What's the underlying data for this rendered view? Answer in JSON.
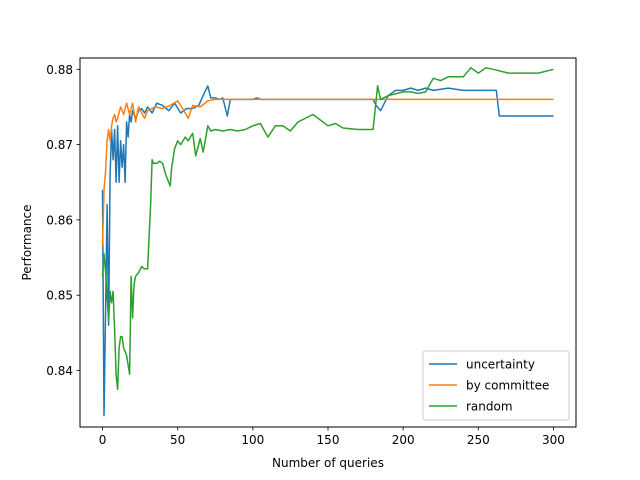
{
  "chart_data": {
    "type": "line",
    "xlabel": "Number of queries",
    "ylabel": "Performance",
    "xlim": [
      -15,
      315
    ],
    "ylim": [
      0.8325,
      0.8815
    ],
    "xticks": [
      0,
      50,
      100,
      150,
      200,
      250,
      300
    ],
    "yticks": [
      0.84,
      0.85,
      0.86,
      0.87,
      0.88
    ],
    "grid": false,
    "legend_position": "lower-right",
    "series": [
      {
        "name": "uncertainty",
        "color": "#1f77b4",
        "x": [
          0,
          1,
          2,
          3,
          4,
          5,
          6,
          7,
          8,
          9,
          10,
          11,
          12,
          13,
          14,
          15,
          16,
          17,
          18,
          19,
          20,
          22,
          24,
          26,
          28,
          30,
          33,
          36,
          40,
          44,
          48,
          52,
          56,
          60,
          64,
          68,
          70,
          72,
          75,
          78,
          80,
          83,
          85,
          88,
          90,
          95,
          100,
          103,
          105,
          108,
          110,
          120,
          130,
          140,
          150,
          160,
          170,
          180,
          182,
          185,
          190,
          195,
          200,
          205,
          210,
          215,
          220,
          230,
          240,
          250,
          255,
          260,
          262,
          264,
          270,
          280,
          290,
          295,
          300
        ],
        "y": [
          0.864,
          0.834,
          0.848,
          0.862,
          0.846,
          0.866,
          0.872,
          0.868,
          0.872,
          0.865,
          0.8725,
          0.865,
          0.8705,
          0.867,
          0.87,
          0.865,
          0.873,
          0.871,
          0.874,
          0.873,
          0.8745,
          0.8735,
          0.8745,
          0.8748,
          0.8742,
          0.875,
          0.8742,
          0.8755,
          0.8752,
          0.8745,
          0.8755,
          0.8742,
          0.8748,
          0.8748,
          0.8752,
          0.877,
          0.8778,
          0.8762,
          0.8762,
          0.876,
          0.8762,
          0.8738,
          0.876,
          0.876,
          0.876,
          0.876,
          0.876,
          0.8762,
          0.876,
          0.876,
          0.876,
          0.876,
          0.876,
          0.876,
          0.876,
          0.876,
          0.876,
          0.876,
          0.8752,
          0.8745,
          0.8765,
          0.8772,
          0.8772,
          0.8775,
          0.8772,
          0.8775,
          0.8772,
          0.8775,
          0.8772,
          0.8772,
          0.8772,
          0.8772,
          0.8772,
          0.8738,
          0.8738,
          0.8738,
          0.8738,
          0.8738,
          0.8738
        ]
      },
      {
        "name": "by committee",
        "color": "#ff7f0e",
        "x": [
          0,
          1,
          2,
          3,
          4,
          5,
          6,
          7,
          8,
          9,
          10,
          12,
          14,
          16,
          18,
          20,
          22,
          24,
          26,
          28,
          30,
          35,
          40,
          45,
          50,
          55,
          57,
          60,
          65,
          70,
          75,
          80,
          90,
          100,
          120,
          150,
          200,
          250,
          300
        ],
        "y": [
          0.8565,
          0.864,
          0.8665,
          0.8705,
          0.872,
          0.8705,
          0.8725,
          0.8735,
          0.874,
          0.873,
          0.8735,
          0.875,
          0.874,
          0.8755,
          0.874,
          0.8755,
          0.873,
          0.875,
          0.8742,
          0.8735,
          0.8745,
          0.875,
          0.8748,
          0.8752,
          0.8758,
          0.8742,
          0.8735,
          0.8752,
          0.875,
          0.8758,
          0.876,
          0.876,
          0.876,
          0.876,
          0.876,
          0.876,
          0.876,
          0.876,
          0.876
        ]
      },
      {
        "name": "random",
        "color": "#2ca02c",
        "x": [
          0,
          1,
          2,
          3,
          4,
          5,
          6,
          7,
          8,
          9,
          10,
          11,
          12,
          13,
          14,
          16,
          18,
          19,
          20,
          21,
          22,
          24,
          26,
          28,
          30,
          32,
          33,
          34,
          36,
          38,
          40,
          42,
          45,
          46,
          48,
          50,
          52,
          55,
          57,
          60,
          62,
          65,
          67,
          70,
          72,
          75,
          80,
          85,
          90,
          95,
          100,
          105,
          110,
          115,
          120,
          125,
          130,
          140,
          150,
          155,
          160,
          170,
          180,
          183,
          185,
          190,
          200,
          205,
          210,
          215,
          220,
          225,
          230,
          240,
          245,
          250,
          255,
          260,
          270,
          280,
          290,
          300
        ],
        "y": [
          0.8525,
          0.8555,
          0.853,
          0.85,
          0.8465,
          0.8505,
          0.849,
          0.8505,
          0.8455,
          0.8395,
          0.8375,
          0.843,
          0.8445,
          0.8445,
          0.843,
          0.842,
          0.8395,
          0.8525,
          0.847,
          0.8515,
          0.8525,
          0.853,
          0.8538,
          0.8535,
          0.8535,
          0.862,
          0.868,
          0.8675,
          0.8675,
          0.8678,
          0.8675,
          0.866,
          0.8645,
          0.867,
          0.8695,
          0.8705,
          0.87,
          0.871,
          0.8705,
          0.8715,
          0.8685,
          0.8708,
          0.869,
          0.8725,
          0.8718,
          0.872,
          0.8718,
          0.872,
          0.8718,
          0.872,
          0.8725,
          0.8728,
          0.871,
          0.8725,
          0.8725,
          0.8718,
          0.873,
          0.874,
          0.8725,
          0.8728,
          0.8722,
          0.872,
          0.872,
          0.8778,
          0.876,
          0.8765,
          0.877,
          0.877,
          0.8768,
          0.877,
          0.8788,
          0.8785,
          0.879,
          0.879,
          0.8802,
          0.8795,
          0.8802,
          0.88,
          0.8795,
          0.8795,
          0.8795,
          0.88
        ]
      }
    ]
  }
}
